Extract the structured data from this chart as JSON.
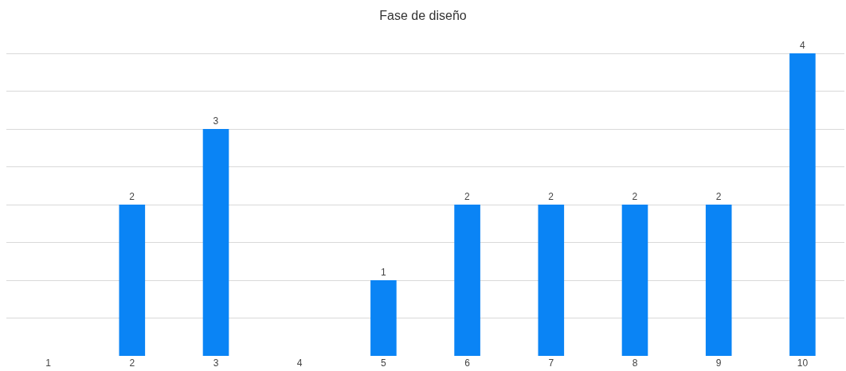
{
  "chart_data": {
    "type": "bar",
    "title": "Fase de diseño",
    "categories": [
      "1",
      "2",
      "3",
      "4",
      "5",
      "6",
      "7",
      "8",
      "9",
      "10"
    ],
    "values": [
      0,
      2,
      3,
      0,
      1,
      2,
      2,
      2,
      2,
      4
    ],
    "value_labels": [
      null,
      "2",
      "3",
      null,
      "1",
      "2",
      "2",
      "2",
      "2",
      "4"
    ],
    "color": "#0a84f5",
    "tick_labels": "x",
    "grid": "y"
  }
}
